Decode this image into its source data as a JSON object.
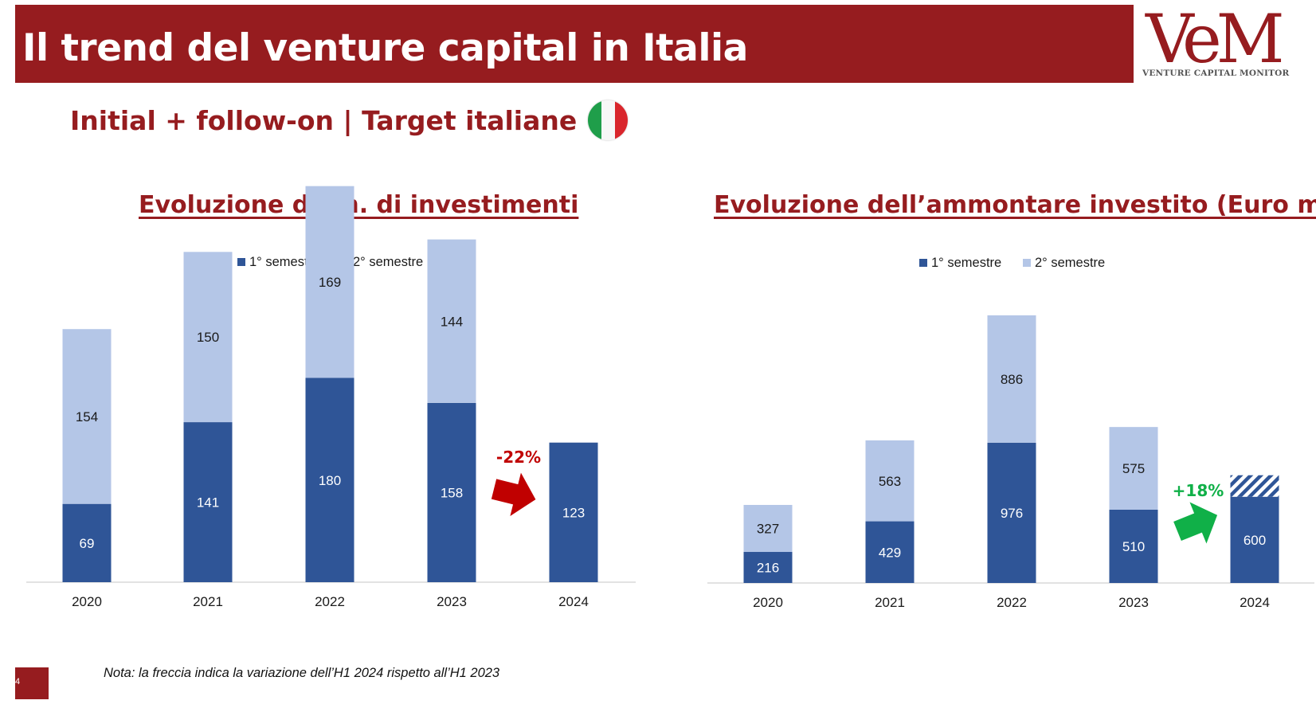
{
  "header": {
    "title": "Il trend del venture capital in Italia"
  },
  "logo": {
    "mark": "VeM",
    "sub": "VENTURE CAPITAL MONITOR"
  },
  "subtitle": "Initial + follow-on | Target italiane",
  "note": "Nota: la freccia indica la variazione dell’H1 2024 rispetto all’H1 2023",
  "page_number": "4",
  "colors": {
    "h1": "#2f5597",
    "h2": "#b4c6e7",
    "brand": "#961c1f",
    "decline": "#c00000",
    "growth": "#10b048"
  },
  "chart_data": [
    {
      "type": "bar",
      "stacked": true,
      "title": "Evoluzione del n. di investimenti",
      "categories": [
        "2020",
        "2021",
        "2022",
        "2023",
        "2024"
      ],
      "series": [
        {
          "name": "1° semestre",
          "values": [
            69,
            141,
            180,
            158,
            123
          ]
        },
        {
          "name": "2° semestre",
          "values": [
            154,
            150,
            169,
            144,
            null
          ]
        }
      ],
      "legend": "top-center",
      "grid": false,
      "annotation": {
        "text": "-22%",
        "direction": "down",
        "color": "#c00000"
      }
    },
    {
      "type": "bar",
      "stacked": true,
      "title": "Evoluzione dell’ammontare investito (Euro mln)",
      "categories": [
        "2020",
        "2021",
        "2022",
        "2023",
        "2024"
      ],
      "series": [
        {
          "name": "1° semestre",
          "values": [
            216,
            429,
            976,
            510,
            600
          ]
        },
        {
          "name": "2° semestre",
          "values": [
            327,
            563,
            886,
            575,
            null
          ]
        }
      ],
      "legend": "top-center",
      "grid": false,
      "annotation": {
        "text": "+18%",
        "direction": "up",
        "color": "#10b048"
      },
      "hatched_segment_2024": true
    }
  ]
}
